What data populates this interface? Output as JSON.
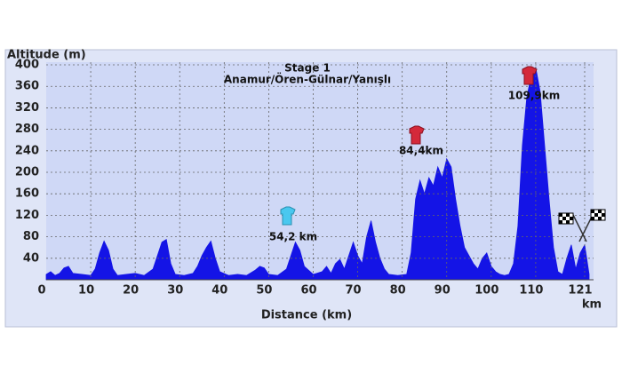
{
  "chart_data": {
    "type": "area",
    "annotations": [
      "Stage 1",
      "Anamur/Ören-Gülnar/Yanışlı",
      "54,2 km",
      "84,4km",
      "109,9km"
    ],
    "y_label": "Altitude (m)",
    "x_label": "Distance (km)",
    "x_unit": "km",
    "color": "#1414e6",
    "grid": true,
    "xlim": [
      0,
      123
    ],
    "ylim": [
      0,
      405
    ],
    "xticks": [
      0,
      10,
      20,
      30,
      40,
      50,
      60,
      70,
      80,
      90,
      100,
      110,
      121
    ],
    "yticks": [
      40,
      80,
      120,
      160,
      200,
      240,
      280,
      320,
      360,
      400
    ],
    "x": [
      0,
      1,
      2,
      3,
      4,
      5,
      6,
      8,
      10,
      11,
      12,
      13,
      14,
      15,
      16,
      18,
      20,
      22,
      24,
      25,
      26,
      27,
      28,
      29,
      31,
      33,
      34,
      35,
      36,
      37,
      38,
      39,
      41,
      43,
      45,
      47,
      48,
      49,
      50,
      52,
      54,
      55,
      56,
      57,
      58,
      60,
      62,
      63,
      64,
      65,
      66,
      67,
      68,
      69,
      70,
      71,
      72,
      73,
      74,
      75,
      76,
      77,
      79,
      81,
      82,
      83,
      84,
      85,
      86,
      87,
      88,
      89,
      90,
      91,
      92,
      93,
      94,
      95,
      96,
      97,
      98,
      99,
      100,
      101,
      102,
      103,
      104,
      105,
      106,
      107,
      108,
      109,
      110,
      111,
      112,
      113,
      114,
      115,
      116,
      117,
      118,
      119,
      120,
      121,
      122
    ],
    "values": [
      10,
      15,
      8,
      12,
      22,
      25,
      12,
      10,
      8,
      20,
      50,
      72,
      55,
      20,
      8,
      10,
      12,
      8,
      20,
      45,
      70,
      75,
      30,
      10,
      8,
      12,
      25,
      45,
      60,
      72,
      40,
      15,
      8,
      10,
      8,
      18,
      25,
      22,
      10,
      8,
      20,
      45,
      70,
      55,
      25,
      10,
      15,
      25,
      12,
      30,
      38,
      20,
      45,
      70,
      45,
      30,
      80,
      110,
      70,
      40,
      20,
      10,
      8,
      10,
      50,
      150,
      185,
      160,
      190,
      175,
      210,
      190,
      225,
      210,
      150,
      100,
      60,
      45,
      30,
      20,
      40,
      50,
      25,
      15,
      10,
      8,
      10,
      30,
      100,
      250,
      340,
      380,
      395,
      350,
      250,
      150,
      60,
      15,
      10,
      40,
      65,
      20,
      50,
      65,
      10
    ]
  }
}
